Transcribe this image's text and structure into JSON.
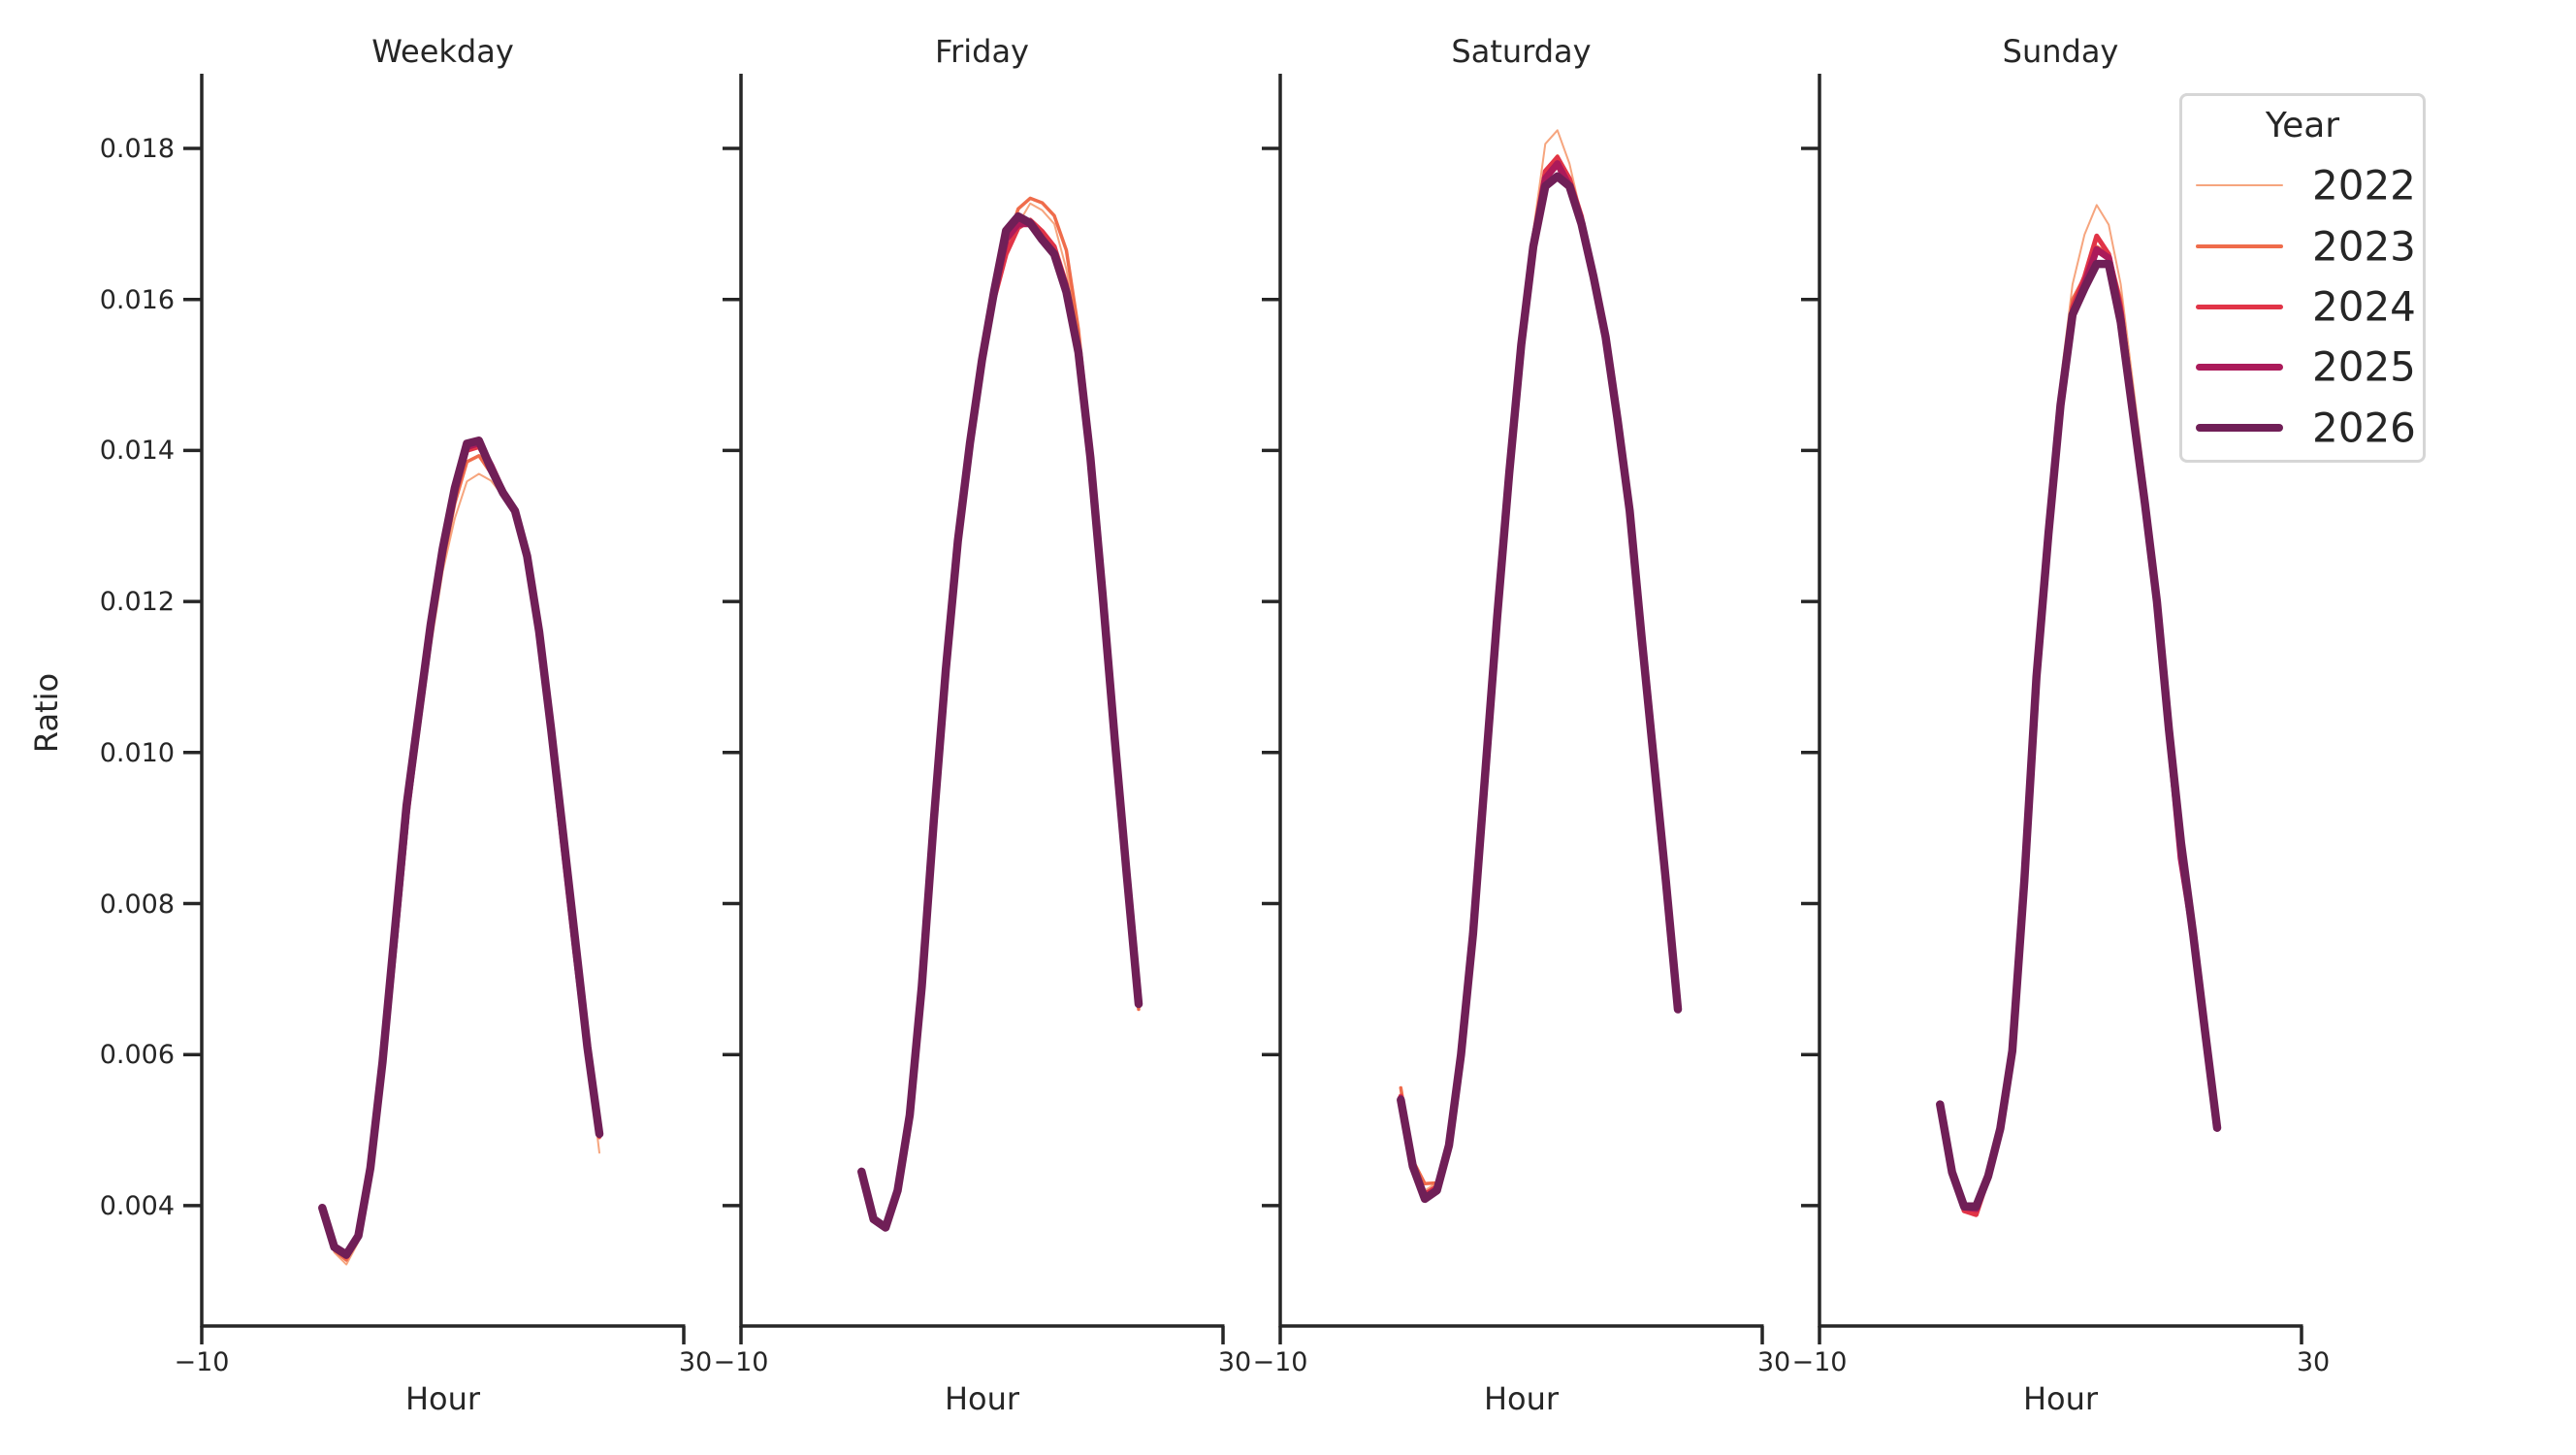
{
  "figure": {
    "ylabel": "Ratio",
    "xlabel": "Hour",
    "panels": [
      {
        "title": "Weekday"
      },
      {
        "title": "Friday"
      },
      {
        "title": "Saturday"
      },
      {
        "title": "Sunday"
      }
    ],
    "yticks": [
      "0.004",
      "0.006",
      "0.008",
      "0.010",
      "0.012",
      "0.014",
      "0.016",
      "0.018"
    ],
    "xticks": [
      "−10",
      "30"
    ]
  },
  "legend": {
    "title": "Year",
    "items": [
      {
        "label": "2022",
        "color": "#f6a57e",
        "width": 2
      },
      {
        "label": "2023",
        "color": "#ef6c4b",
        "width": 3.5
      },
      {
        "label": "2024",
        "color": "#e13447",
        "width": 5
      },
      {
        "label": "2025",
        "color": "#ab1a5a",
        "width": 7
      },
      {
        "label": "2026",
        "color": "#701f57",
        "width": 8.5
      }
    ]
  },
  "chart_data": {
    "type": "line",
    "title": "",
    "xlabel": "Hour",
    "ylabel": "Ratio",
    "xlim": [
      -10,
      30
    ],
    "ylim": [
      0.00245,
      0.019
    ],
    "grid": false,
    "legend_position": "upper right (inside Sunday panel)",
    "x": [
      0,
      1,
      2,
      3,
      4,
      5,
      6,
      7,
      8,
      9,
      10,
      11,
      12,
      13,
      14,
      15,
      16,
      17,
      18,
      19,
      20,
      21,
      22,
      23
    ],
    "facets": [
      {
        "title": "Weekday",
        "series": [
          {
            "name": "2022",
            "values": [
              0.00392,
              0.00338,
              0.00322,
              0.00352,
              0.0044,
              0.0058,
              0.0074,
              0.009,
              0.0102,
              0.0114,
              0.0124,
              0.0131,
              0.01359,
              0.01369,
              0.0136,
              0.0134,
              0.0132,
              0.0126,
              0.0116,
              0.0103,
              0.0088,
              0.0074,
              0.006,
              0.0047
            ]
          },
          {
            "name": "2023",
            "values": [
              0.00394,
              0.00341,
              0.00328,
              0.00356,
              0.00445,
              0.00585,
              0.0075,
              0.0091,
              0.0103,
              0.0115,
              0.0125,
              0.0133,
              0.01385,
              0.01393,
              0.0137,
              0.01342,
              0.0132,
              0.0126,
              0.0116,
              0.0103,
              0.0088,
              0.0074,
              0.0061,
              0.0049
            ]
          },
          {
            "name": "2024",
            "values": [
              0.00396,
              0.00344,
              0.00332,
              0.00358,
              0.00448,
              0.00588,
              0.0075,
              0.0092,
              0.0104,
              0.0116,
              0.0126,
              0.0134,
              0.014,
              0.01405,
              0.01378,
              0.01344,
              0.0132,
              0.0126,
              0.0116,
              0.0103,
              0.0088,
              0.0074,
              0.0061,
              0.00492
            ]
          },
          {
            "name": "2025",
            "values": [
              0.00397,
              0.00345,
              0.00334,
              0.00359,
              0.0045,
              0.0059,
              0.0075,
              0.0092,
              0.0105,
              0.0117,
              0.0127,
              0.0135,
              0.01405,
              0.0141,
              0.0138,
              0.01345,
              0.0132,
              0.0126,
              0.0116,
              0.0103,
              0.0088,
              0.0074,
              0.0061,
              0.00494
            ]
          },
          {
            "name": "2026",
            "values": [
              0.00397,
              0.00345,
              0.00335,
              0.0036,
              0.0045,
              0.0059,
              0.0076,
              0.0093,
              0.0105,
              0.0117,
              0.0127,
              0.0135,
              0.01409,
              0.01413,
              0.01376,
              0.01344,
              0.0132,
              0.0126,
              0.0116,
              0.0103,
              0.0089,
              0.0075,
              0.0061,
              0.00495
            ]
          }
        ]
      },
      {
        "title": "Friday",
        "series": [
          {
            "name": "2022",
            "values": [
              0.00445,
              0.00384,
              0.00369,
              0.0042,
              0.0052,
              0.0069,
              0.009,
              0.011,
              0.0127,
              0.014,
              0.0151,
              0.016,
              0.0166,
              0.017,
              0.01727,
              0.01718,
              0.017,
              0.0164,
              0.0155,
              0.014,
              0.0122,
              0.0103,
              0.0084,
              0.0066
            ]
          },
          {
            "name": "2023",
            "values": [
              0.00445,
              0.00383,
              0.0037,
              0.0042,
              0.0052,
              0.0069,
              0.009,
              0.011,
              0.0127,
              0.014,
              0.0151,
              0.016,
              0.0167,
              0.0172,
              0.01734,
              0.01728,
              0.01711,
              0.01665,
              0.0156,
              0.0141,
              0.0122,
              0.0103,
              0.0084,
              0.0066
            ]
          },
          {
            "name": "2024",
            "values": [
              0.00445,
              0.00382,
              0.0037,
              0.0042,
              0.0052,
              0.0069,
              0.009,
              0.011,
              0.0127,
              0.014,
              0.0151,
              0.016,
              0.0166,
              0.01695,
              0.01705,
              0.0169,
              0.0167,
              0.0162,
              0.0153,
              0.0139,
              0.0121,
              0.0102,
              0.0084,
              0.00666
            ]
          },
          {
            "name": "2025",
            "values": [
              0.00445,
              0.00382,
              0.00371,
              0.0042,
              0.0052,
              0.0069,
              0.0091,
              0.0111,
              0.0128,
              0.0141,
              0.0152,
              0.0161,
              0.0168,
              0.017,
              0.017,
              0.0168,
              0.0166,
              0.0161,
              0.0153,
              0.0139,
              0.0121,
              0.0102,
              0.0084,
              0.00667
            ]
          },
          {
            "name": "2026",
            "values": [
              0.00445,
              0.00382,
              0.00371,
              0.0042,
              0.0052,
              0.0069,
              0.0091,
              0.0111,
              0.0128,
              0.0141,
              0.0152,
              0.0161,
              0.01691,
              0.0171,
              0.01701,
              0.01679,
              0.0166,
              0.0161,
              0.0153,
              0.0139,
              0.0121,
              0.0102,
              0.0084,
              0.00667
            ]
          }
        ]
      },
      {
        "title": "Saturday",
        "series": [
          {
            "name": "2022",
            "values": [
              0.0055,
              0.0046,
              0.0042,
              0.0043,
              0.0048,
              0.006,
              0.0076,
              0.0097,
              0.0118,
              0.0137,
              0.0155,
              0.0169,
              0.01806,
              0.01824,
              0.0178,
              0.0171,
              0.0163,
              0.0155,
              0.0144,
              0.0132,
              0.0115,
              0.0099,
              0.0083,
              0.0066
            ]
          },
          {
            "name": "2023",
            "values": [
              0.00556,
              0.0046,
              0.00429,
              0.0043,
              0.0048,
              0.006,
              0.0076,
              0.0097,
              0.0118,
              0.0137,
              0.0154,
              0.0168,
              0.0177,
              0.0179,
              0.0176,
              0.0171,
              0.0163,
              0.0155,
              0.0144,
              0.0132,
              0.0115,
              0.0099,
              0.0083,
              0.0066
            ]
          },
          {
            "name": "2024",
            "values": [
              0.00545,
              0.00455,
              0.00415,
              0.00425,
              0.0048,
              0.006,
              0.0076,
              0.0097,
              0.0118,
              0.0137,
              0.0154,
              0.0168,
              0.0177,
              0.01788,
              0.0176,
              0.0171,
              0.0163,
              0.0155,
              0.0144,
              0.0132,
              0.0115,
              0.0099,
              0.0083,
              0.0066
            ]
          },
          {
            "name": "2025",
            "values": [
              0.00542,
              0.00453,
              0.0041,
              0.0042,
              0.0048,
              0.006,
              0.0076,
              0.0097,
              0.0118,
              0.0137,
              0.0154,
              0.0167,
              0.0176,
              0.0178,
              0.0175,
              0.017,
              0.0163,
              0.0155,
              0.0144,
              0.0132,
              0.0115,
              0.0099,
              0.0083,
              0.0066
            ]
          },
          {
            "name": "2026",
            "values": [
              0.0054,
              0.00452,
              0.00409,
              0.0042,
              0.0048,
              0.006,
              0.0076,
              0.0097,
              0.0118,
              0.0137,
              0.0154,
              0.0167,
              0.0175,
              0.01763,
              0.0175,
              0.017,
              0.0163,
              0.0155,
              0.0144,
              0.0132,
              0.0115,
              0.0099,
              0.0083,
              0.0066
            ]
          }
        ]
      },
      {
        "title": "Sunday",
        "series": [
          {
            "name": "2022",
            "values": [
              0.00534,
              0.00444,
              0.00396,
              0.00392,
              0.00435,
              0.005,
              0.00605,
              0.0083,
              0.011,
              0.0131,
              0.0149,
              0.0162,
              0.01686,
              0.01725,
              0.01699,
              0.0162,
              0.0149,
              0.0136,
              0.0122,
              0.0105,
              0.0088,
              0.0076,
              0.0063,
              0.00505
            ]
          },
          {
            "name": "2023",
            "values": [
              0.00534,
              0.00444,
              0.00394,
              0.0039,
              0.00436,
              0.005,
              0.00605,
              0.0083,
              0.011,
              0.013,
              0.0147,
              0.016,
              0.0163,
              0.0167,
              0.0166,
              0.016,
              0.0147,
              0.0135,
              0.0121,
              0.0104,
              0.0087,
              0.0076,
              0.0063,
              0.00504
            ]
          },
          {
            "name": "2024",
            "values": [
              0.00534,
              0.00444,
              0.00393,
              0.00388,
              0.00436,
              0.005,
              0.00605,
              0.0083,
              0.011,
              0.0129,
              0.0146,
              0.0159,
              0.0163,
              0.01684,
              0.0166,
              0.0159,
              0.0146,
              0.0134,
              0.0121,
              0.0104,
              0.0087,
              0.0076,
              0.0063,
              0.00503
            ]
          },
          {
            "name": "2025",
            "values": [
              0.00534,
              0.00444,
              0.00398,
              0.00396,
              0.00438,
              0.00501,
              0.00605,
              0.0083,
              0.011,
              0.0129,
              0.0146,
              0.0158,
              0.0162,
              0.01666,
              0.01655,
              0.0158,
              0.0145,
              0.0133,
              0.012,
              0.0103,
              0.0086,
              0.0076,
              0.0063,
              0.00503
            ]
          },
          {
            "name": "2026",
            "values": [
              0.00534,
              0.00444,
              0.00399,
              0.00399,
              0.00439,
              0.00502,
              0.00605,
              0.0083,
              0.011,
              0.0129,
              0.0146,
              0.0158,
              0.01615,
              0.01647,
              0.01647,
              0.0157,
              0.0145,
              0.0133,
              0.012,
              0.0103,
              0.0088,
              0.0076,
              0.0063,
              0.00503
            ]
          }
        ]
      }
    ]
  }
}
